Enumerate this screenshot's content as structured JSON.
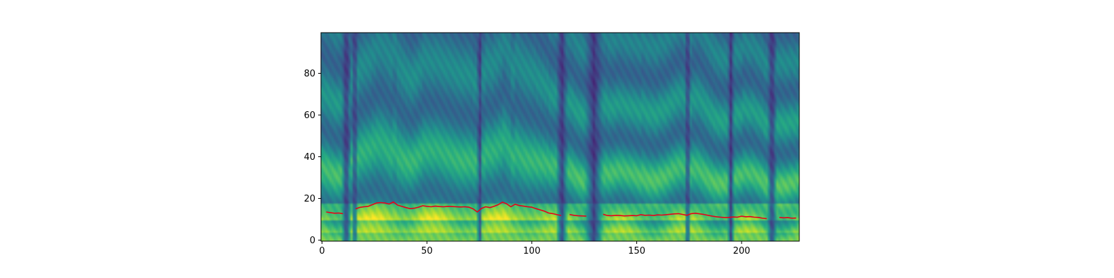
{
  "chart_data": {
    "type": "heatmap",
    "title": "",
    "xlabel": "",
    "ylabel": "",
    "xlim": [
      0,
      227
    ],
    "ylim": [
      0,
      99
    ],
    "xticks": [
      0,
      50,
      100,
      150,
      200
    ],
    "yticks": [
      0,
      20,
      40,
      60,
      80
    ],
    "colormap": "viridis",
    "heatmap_rows": 100,
    "heatmap_cols": 227,
    "heatmap_description": "mel-spectrogram with bright harmonic bands, strongest energy around rows 10-35",
    "pitch_line_color": "#e8001a",
    "series": [
      {
        "segments": [
          {
            "x": [
              2,
              4,
              6,
              8,
              10
            ],
            "y": [
              13.5,
              13.2,
              12.9,
              13.0,
              12.7
            ]
          },
          {
            "x": [
              16,
              18,
              20,
              22,
              24,
              26,
              28,
              30,
              32,
              34,
              36,
              38,
              40,
              42,
              44,
              46,
              48,
              50,
              52,
              54,
              56,
              58,
              60,
              62,
              64,
              66,
              68,
              70,
              72,
              74,
              76,
              78,
              80,
              82,
              84,
              86,
              88,
              90,
              92,
              94,
              96,
              98,
              100,
              102,
              104,
              106,
              108,
              110,
              112,
              114
            ],
            "y": [
              15.0,
              15.7,
              16.0,
              16.2,
              17.0,
              17.8,
              18.0,
              17.8,
              17.3,
              18.3,
              16.8,
              16.2,
              15.6,
              15.1,
              15.3,
              15.8,
              16.5,
              16.2,
              16.0,
              16.3,
              16.1,
              16.0,
              16.2,
              16.1,
              16.0,
              15.9,
              16.0,
              15.8,
              15.0,
              13.5,
              15.2,
              16.0,
              15.6,
              16.2,
              17.0,
              18.2,
              17.4,
              16.0,
              17.2,
              16.6,
              16.3,
              16.0,
              15.8,
              15.1,
              14.5,
              13.9,
              13.0,
              12.7,
              12.2,
              11.8
            ]
          },
          {
            "x": [
              118,
              120,
              122,
              124,
              126
            ],
            "y": [
              12.3,
              11.9,
              11.7,
              11.6,
              11.5
            ]
          },
          {
            "x": [
              134,
              136,
              138,
              140,
              142,
              144,
              146,
              148,
              150,
              152,
              154,
              156,
              158,
              160,
              162,
              164,
              166,
              168,
              170,
              172,
              174,
              176,
              178,
              180,
              182,
              184,
              186,
              188,
              190,
              192,
              194,
              196,
              198,
              200,
              202,
              204,
              206,
              208,
              210,
              212
            ],
            "y": [
              12.4,
              11.8,
              11.7,
              11.9,
              11.8,
              11.6,
              11.7,
              11.8,
              11.7,
              12.2,
              11.9,
              12.0,
              11.8,
              12.1,
              12.0,
              12.2,
              12.4,
              12.6,
              12.7,
              12.3,
              11.9,
              12.7,
              12.9,
              12.6,
              12.3,
              11.9,
              11.5,
              11.2,
              11.0,
              10.8,
              10.9,
              11.1,
              11.0,
              11.5,
              11.2,
              11.3,
              11.0,
              10.9,
              10.5,
              10.3
            ]
          },
          {
            "x": [
              218,
              220,
              222,
              224,
              226
            ],
            "y": [
              10.9,
              10.7,
              10.8,
              10.5,
              10.6
            ]
          }
        ]
      }
    ]
  }
}
